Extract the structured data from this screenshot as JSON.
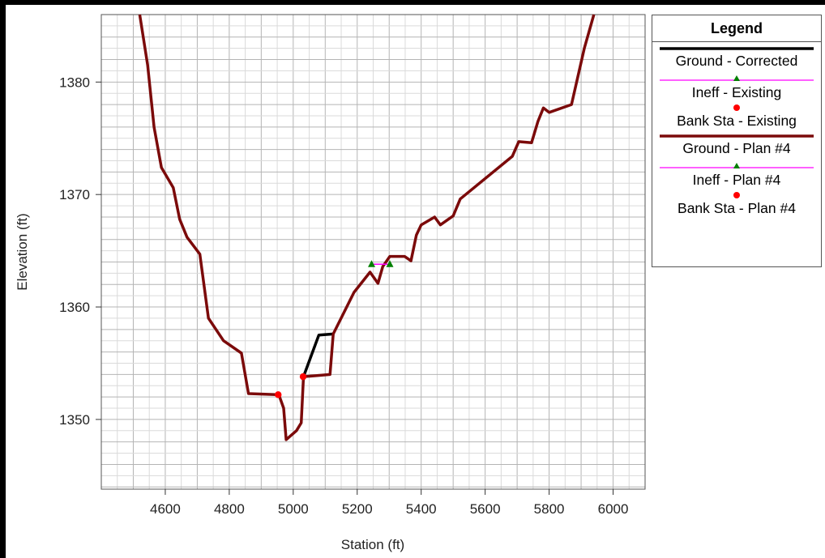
{
  "chart_data": {
    "type": "line",
    "title": "",
    "xlabel": "Station (ft)",
    "ylabel": "Elevation (ft)",
    "xlim": [
      4400,
      6100
    ],
    "ylim": [
      1343.8,
      1386
    ],
    "x_ticks": [
      4600,
      4800,
      5000,
      5200,
      5400,
      5600,
      5800,
      6000
    ],
    "y_ticks": [
      1350,
      1360,
      1370,
      1380
    ],
    "grid": true,
    "legend_position": "right",
    "series": [
      {
        "name": "Ground - Plan #4",
        "color": "#7b0a0a",
        "points": [
          [
            4520,
            1386
          ],
          [
            4545,
            1381.5
          ],
          [
            4565,
            1376
          ],
          [
            4588,
            1372.4
          ],
          [
            4625,
            1370.6
          ],
          [
            4645,
            1367.8
          ],
          [
            4668,
            1366.2
          ],
          [
            4708,
            1364.7
          ],
          [
            4735,
            1359
          ],
          [
            4782,
            1357
          ],
          [
            4838,
            1355.9
          ],
          [
            4860,
            1352.3
          ],
          [
            4955,
            1352.2
          ],
          [
            4970,
            1351
          ],
          [
            4978,
            1348.2
          ],
          [
            4990,
            1348.5
          ],
          [
            5010,
            1349
          ],
          [
            5025,
            1349.7
          ],
          [
            5032,
            1353.8
          ],
          [
            5075,
            1353.9
          ],
          [
            5115,
            1354
          ],
          [
            5125,
            1357.6
          ],
          [
            5190,
            1361.3
          ],
          [
            5240,
            1363.1
          ],
          [
            5265,
            1362.1
          ],
          [
            5280,
            1363.6
          ],
          [
            5302,
            1364.5
          ],
          [
            5348,
            1364.5
          ],
          [
            5368,
            1364.1
          ],
          [
            5385,
            1366.4
          ],
          [
            5400,
            1367.3
          ],
          [
            5442,
            1368
          ],
          [
            5460,
            1367.3
          ],
          [
            5500,
            1368.1
          ],
          [
            5522,
            1369.6
          ],
          [
            5685,
            1373.4
          ],
          [
            5705,
            1374.7
          ],
          [
            5745,
            1374.6
          ],
          [
            5765,
            1376.5
          ],
          [
            5782,
            1377.7
          ],
          [
            5800,
            1377.3
          ],
          [
            5870,
            1378
          ],
          [
            5910,
            1383
          ],
          [
            5940,
            1386
          ]
        ]
      },
      {
        "name": "Ground - Corrected",
        "color": "#000000",
        "points": [
          [
            5032,
            1353.8
          ],
          [
            5080,
            1357.5
          ],
          [
            5125,
            1357.6
          ]
        ]
      },
      {
        "name": "Ineff - Plan #4",
        "color": "#ff00ff",
        "marker_color": "#008000",
        "points": [
          [
            5245,
            1363.8
          ],
          [
            5302,
            1363.8
          ]
        ]
      },
      {
        "name": "Bank Sta - Plan #4",
        "color": "#ff0000",
        "points": [
          [
            4953,
            1352.2
          ],
          [
            5031,
            1353.8
          ]
        ]
      }
    ],
    "legend_entries": [
      {
        "label": "Ground - Corrected",
        "kind": "thick-line",
        "color": "#000000"
      },
      {
        "label": "Ineff - Existing",
        "kind": "thin-line-triangle",
        "color": "#ff00ff",
        "marker_color": "#008000"
      },
      {
        "label": "Bank Sta - Existing",
        "kind": "dot",
        "color": "#ff0000"
      },
      {
        "label": "Ground - Plan #4",
        "kind": "thick-line",
        "color": "#7b0a0a"
      },
      {
        "label": "Ineff - Plan #4",
        "kind": "thin-line-triangle",
        "color": "#ff00ff",
        "marker_color": "#008000"
      },
      {
        "label": "Bank Sta - Plan #4",
        "kind": "dot",
        "color": "#ff0000"
      }
    ]
  },
  "legend": {
    "title": "Legend"
  }
}
